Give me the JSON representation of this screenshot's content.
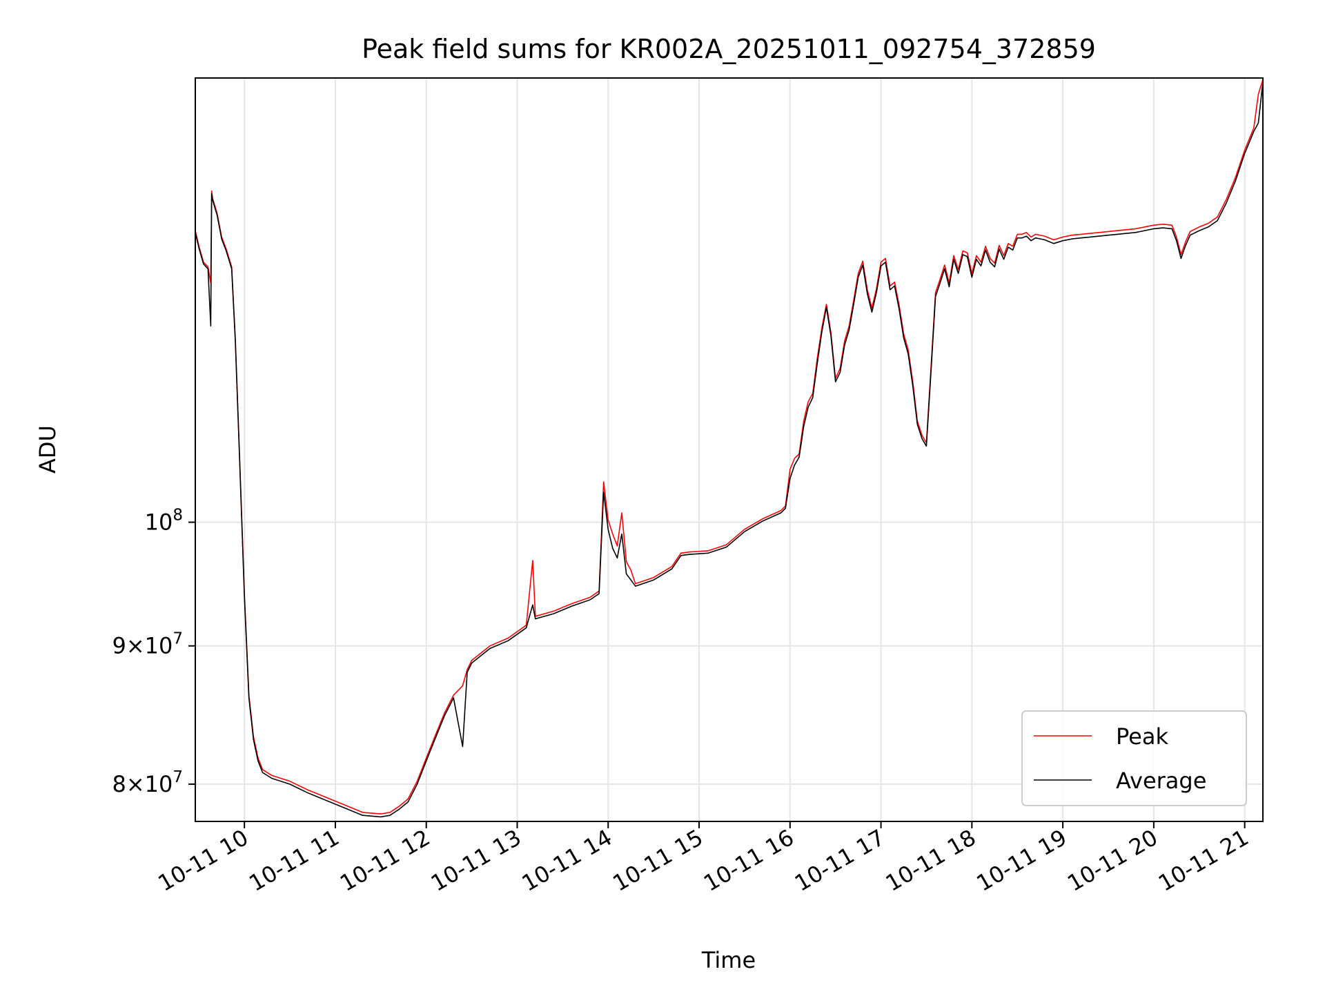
{
  "chart_data": {
    "type": "line",
    "title": "Peak field sums for KR002A_20251011_092754_372859",
    "xlabel": "Time",
    "ylabel": "ADU",
    "yscale": "log",
    "ylim": [
      77500000,
      146000000
    ],
    "xlim": [
      9.46,
      21.2
    ],
    "grid": true,
    "legend_position": "lower-right",
    "x_ticks": [
      {
        "value": 10,
        "label": "10-11 10"
      },
      {
        "value": 11,
        "label": "10-11 11"
      },
      {
        "value": 12,
        "label": "10-11 12"
      },
      {
        "value": 13,
        "label": "10-11 13"
      },
      {
        "value": 14,
        "label": "10-11 14"
      },
      {
        "value": 15,
        "label": "10-11 15"
      },
      {
        "value": 16,
        "label": "10-11 16"
      },
      {
        "value": 17,
        "label": "10-11 17"
      },
      {
        "value": 18,
        "label": "10-11 18"
      },
      {
        "value": 19,
        "label": "10-11 19"
      },
      {
        "value": 20,
        "label": "10-11 20"
      },
      {
        "value": 21,
        "label": "10-11 21"
      }
    ],
    "y_ticks": [
      {
        "value": 80000000,
        "mantissa": "8",
        "times": "×",
        "base": "10",
        "exp": "7"
      },
      {
        "value": 90000000,
        "mantissa": "9",
        "times": "×",
        "base": "10",
        "exp": "7"
      },
      {
        "value": 100000000,
        "mantissa": "",
        "times": "",
        "base": "10",
        "exp": "8"
      }
    ],
    "series": [
      {
        "name": "Peak",
        "color": "#ff0000",
        "x": [
          9.46,
          9.5,
          9.55,
          9.6,
          9.63,
          9.64,
          9.65,
          9.7,
          9.75,
          9.8,
          9.86,
          9.9,
          9.95,
          10.0,
          10.05,
          10.1,
          10.15,
          10.2,
          10.3,
          10.5,
          10.7,
          10.9,
          11.1,
          11.3,
          11.5,
          11.6,
          11.7,
          11.8,
          11.9,
          12.0,
          12.1,
          12.2,
          12.3,
          12.4,
          12.45,
          12.5,
          12.7,
          12.9,
          13.1,
          13.17,
          13.2,
          13.4,
          13.6,
          13.8,
          13.9,
          13.95,
          14.0,
          14.05,
          14.1,
          14.15,
          14.2,
          14.25,
          14.3,
          14.5,
          14.7,
          14.8,
          14.9,
          15.1,
          15.3,
          15.5,
          15.7,
          15.9,
          15.95,
          16.0,
          16.05,
          16.1,
          16.15,
          16.2,
          16.25,
          16.3,
          16.35,
          16.4,
          16.45,
          16.5,
          16.55,
          16.6,
          16.65,
          16.7,
          16.75,
          16.8,
          16.85,
          16.9,
          16.95,
          17.0,
          17.05,
          17.1,
          17.15,
          17.2,
          17.25,
          17.3,
          17.35,
          17.4,
          17.45,
          17.5,
          17.55,
          17.6,
          17.65,
          17.7,
          17.75,
          17.8,
          17.85,
          17.9,
          17.95,
          18.0,
          18.05,
          18.1,
          18.15,
          18.2,
          18.25,
          18.3,
          18.35,
          18.4,
          18.45,
          18.5,
          18.55,
          18.6,
          18.65,
          18.7,
          18.8,
          18.9,
          19.0,
          19.1,
          19.2,
          19.3,
          19.4,
          19.5,
          19.6,
          19.7,
          19.8,
          19.9,
          20.0,
          20.1,
          20.2,
          20.25,
          20.3,
          20.35,
          20.4,
          20.5,
          20.6,
          20.7,
          20.8,
          20.9,
          21.0,
          21.1,
          21.15,
          21.2
        ],
        "values": [
          128.2,
          126.5,
          124.8,
          124.3,
          122.6,
          132.6,
          131.8,
          130.1,
          127.5,
          126.2,
          124.3,
          116.9,
          105.0,
          94.0,
          86.3,
          83.3,
          81.8,
          81.0,
          80.6,
          80.2,
          79.6,
          79.1,
          78.6,
          78.1,
          78.0,
          78.1,
          78.5,
          79.0,
          80.2,
          81.8,
          83.4,
          85.0,
          86.3,
          87.0,
          88.2,
          88.9,
          90.0,
          90.6,
          91.6,
          96.8,
          92.3,
          92.7,
          93.3,
          93.8,
          94.3,
          103.5,
          100.2,
          99.0,
          98.0,
          100.8,
          96.7,
          96.0,
          94.9,
          95.4,
          96.3,
          97.4,
          97.5,
          97.6,
          98.1,
          99.4,
          100.3,
          101.0,
          101.4,
          104.6,
          105.6,
          106.0,
          109.0,
          110.8,
          111.6,
          115.0,
          118.0,
          120.4,
          117.5,
          113.0,
          114.0,
          116.7,
          118.2,
          120.8,
          123.6,
          124.9,
          121.9,
          120.0,
          122.0,
          124.8,
          125.2,
          122.3,
          122.7,
          120.3,
          117.4,
          115.8,
          112.7,
          109.0,
          107.7,
          107.0,
          114.0,
          121.6,
          123.0,
          124.5,
          122.6,
          125.5,
          124.0,
          126.0,
          125.8,
          123.6,
          125.5,
          124.8,
          126.5,
          125.2,
          124.7,
          126.6,
          125.5,
          126.8,
          126.5,
          127.8,
          127.8,
          128.0,
          127.5,
          127.8,
          127.6,
          127.2,
          127.5,
          127.7,
          127.8,
          127.9,
          128.0,
          128.1,
          128.2,
          128.3,
          128.4,
          128.6,
          128.8,
          128.9,
          128.8,
          127.5,
          125.6,
          127.0,
          128.1,
          128.6,
          129.0,
          129.7,
          131.7,
          134.2,
          137.3,
          139.9,
          144.0,
          145.8
        ]
      },
      {
        "name": "Average",
        "color": "#000000",
        "x": [
          9.46,
          9.5,
          9.55,
          9.6,
          9.63,
          9.64,
          9.65,
          9.7,
          9.75,
          9.8,
          9.86,
          9.9,
          9.95,
          10.0,
          10.05,
          10.1,
          10.15,
          10.2,
          10.3,
          10.5,
          10.7,
          10.9,
          11.1,
          11.3,
          11.5,
          11.6,
          11.7,
          11.8,
          11.9,
          12.0,
          12.1,
          12.2,
          12.3,
          12.4,
          12.45,
          12.5,
          12.7,
          12.9,
          13.1,
          13.17,
          13.2,
          13.4,
          13.6,
          13.8,
          13.9,
          13.95,
          14.0,
          14.05,
          14.1,
          14.15,
          14.2,
          14.25,
          14.3,
          14.5,
          14.7,
          14.8,
          14.9,
          15.1,
          15.3,
          15.5,
          15.7,
          15.9,
          15.95,
          16.0,
          16.05,
          16.1,
          16.15,
          16.2,
          16.25,
          16.3,
          16.35,
          16.4,
          16.45,
          16.5,
          16.55,
          16.6,
          16.65,
          16.7,
          16.75,
          16.8,
          16.85,
          16.9,
          16.95,
          17.0,
          17.05,
          17.1,
          17.15,
          17.2,
          17.25,
          17.3,
          17.35,
          17.4,
          17.45,
          17.5,
          17.55,
          17.6,
          17.65,
          17.7,
          17.75,
          17.8,
          17.85,
          17.9,
          17.95,
          18.0,
          18.05,
          18.1,
          18.15,
          18.2,
          18.25,
          18.3,
          18.35,
          18.4,
          18.45,
          18.5,
          18.55,
          18.6,
          18.65,
          18.7,
          18.8,
          18.9,
          19.0,
          19.1,
          19.2,
          19.3,
          19.4,
          19.5,
          19.6,
          19.7,
          19.8,
          19.9,
          20.0,
          20.1,
          20.2,
          20.25,
          20.3,
          20.35,
          20.4,
          20.5,
          20.6,
          20.7,
          20.8,
          20.9,
          21.0,
          21.1,
          21.15,
          21.2
        ],
        "values": [
          128.0,
          126.3,
          124.6,
          124.1,
          118.2,
          132.3,
          131.6,
          129.9,
          127.3,
          126.0,
          124.1,
          116.7,
          104.8,
          93.8,
          86.1,
          83.1,
          81.6,
          80.8,
          80.4,
          80.0,
          79.4,
          78.9,
          78.4,
          77.9,
          77.8,
          77.9,
          78.3,
          78.8,
          80.0,
          81.6,
          83.2,
          84.8,
          86.1,
          82.6,
          88.0,
          88.7,
          89.8,
          90.4,
          91.4,
          93.2,
          92.1,
          92.5,
          93.1,
          93.6,
          94.1,
          102.6,
          99.4,
          97.8,
          97.0,
          99.0,
          95.7,
          95.2,
          94.7,
          95.2,
          96.1,
          97.2,
          97.3,
          97.4,
          97.9,
          99.2,
          100.1,
          100.8,
          101.2,
          103.8,
          105.0,
          105.7,
          108.5,
          110.3,
          111.2,
          114.5,
          117.6,
          120.1,
          117.2,
          112.7,
          113.6,
          116.3,
          117.8,
          120.4,
          123.2,
          124.5,
          121.5,
          119.6,
          121.6,
          124.4,
          124.8,
          121.9,
          122.3,
          119.9,
          117.0,
          115.4,
          112.3,
          108.7,
          107.4,
          106.7,
          113.6,
          121.2,
          122.6,
          124.1,
          122.2,
          125.1,
          123.6,
          125.6,
          125.4,
          123.2,
          125.1,
          124.4,
          126.1,
          124.8,
          124.3,
          126.2,
          125.1,
          126.4,
          126.1,
          127.4,
          127.4,
          127.6,
          127.1,
          127.4,
          127.2,
          126.8,
          127.1,
          127.3,
          127.4,
          127.5,
          127.6,
          127.7,
          127.8,
          127.9,
          128.0,
          128.2,
          128.4,
          128.5,
          128.4,
          127.1,
          125.2,
          126.6,
          127.7,
          128.2,
          128.6,
          129.3,
          131.3,
          133.8,
          136.9,
          139.5,
          140.5,
          145.5
        ]
      }
    ]
  }
}
